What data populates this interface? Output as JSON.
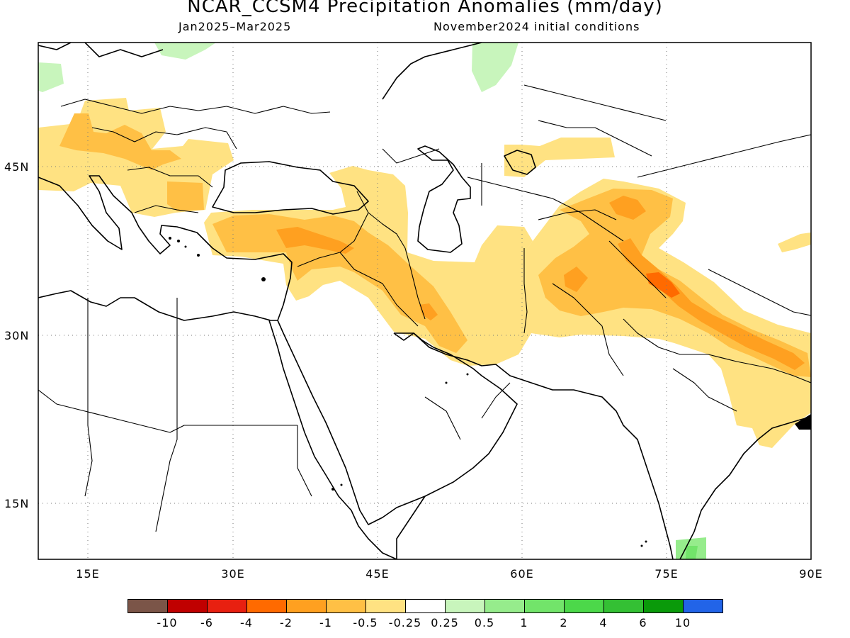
{
  "title": "NCAR_CCSM4 Precipitation Anomalies (mm/day)",
  "subtitle_left": "Jan2025–Mar2025",
  "subtitle_right": "November2024 initial conditions",
  "map": {
    "lon_range": [
      10,
      90
    ],
    "lat_range": [
      10,
      55
    ],
    "lat_ticks": [
      "15N",
      "30N",
      "45N"
    ],
    "lon_ticks": [
      "15E",
      "30E",
      "45E",
      "60E",
      "75E",
      "90E"
    ],
    "grid": "dotted"
  },
  "colorbar": {
    "colors": [
      "#7b5548",
      "#c00000",
      "#e82010",
      "#ff6a00",
      "#ffa020",
      "#ffc045",
      "#ffe282",
      "#ffffff",
      "#c8f5bc",
      "#96ec8c",
      "#72e46a",
      "#4cd84a",
      "#34c034",
      "#0a9a0a",
      "#2264e8"
    ],
    "labels": [
      "-10",
      "-6",
      "-4",
      "-2",
      "-1",
      "-0.5",
      "-0.25",
      "0.25",
      "0.5",
      "1",
      "2",
      "4",
      "6",
      "10"
    ]
  }
}
